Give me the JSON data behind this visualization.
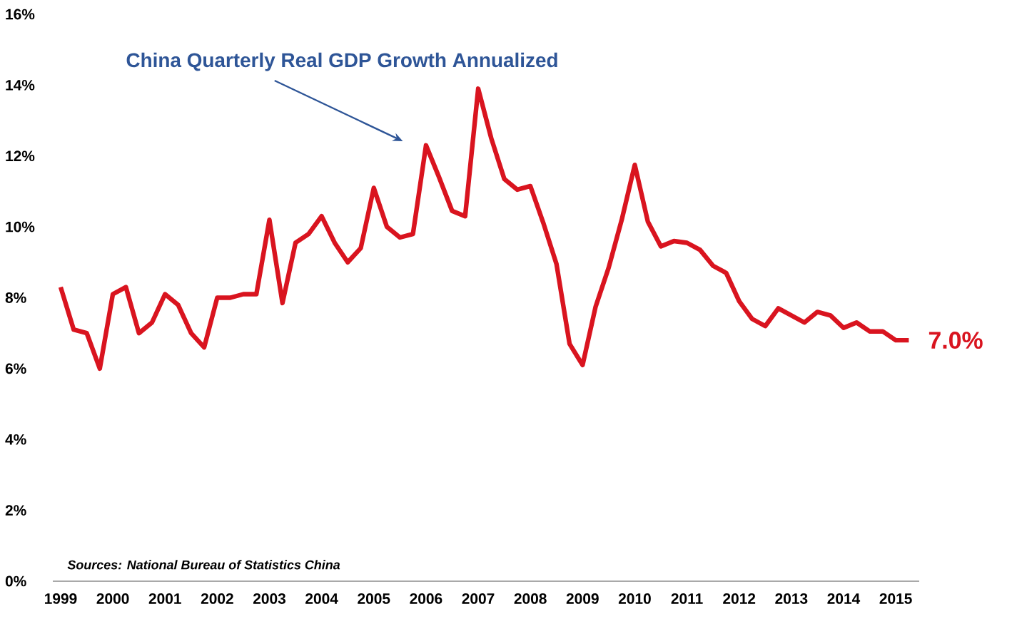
{
  "chart_data": {
    "type": "line",
    "x": [
      1999,
      1999.25,
      1999.5,
      1999.75,
      2000,
      2000.25,
      2000.5,
      2000.75,
      2001,
      2001.25,
      2001.5,
      2001.75,
      2002,
      2002.25,
      2002.5,
      2002.75,
      2003,
      2003.25,
      2003.5,
      2003.75,
      2004,
      2004.25,
      2004.5,
      2004.75,
      2005,
      2005.25,
      2005.5,
      2005.75,
      2006,
      2006.25,
      2006.5,
      2006.75,
      2007,
      2007.25,
      2007.5,
      2007.75,
      2008,
      2008.25,
      2008.5,
      2008.75,
      2009,
      2009.25,
      2009.5,
      2009.75,
      2010,
      2010.25,
      2010.5,
      2010.75,
      2011,
      2011.25,
      2011.5,
      2011.75,
      2012,
      2012.25,
      2012.5,
      2012.75,
      2013,
      2013.25,
      2013.5,
      2013.75,
      2014,
      2014.25,
      2014.5,
      2014.75,
      2015,
      2015.25
    ],
    "series": [
      {
        "name": "China Quarterly Real GDP Growth Annualized",
        "color": "#d9141f",
        "values": [
          8.3,
          7.1,
          7.0,
          6.0,
          8.1,
          8.3,
          7.0,
          7.3,
          8.1,
          7.8,
          7.0,
          6.6,
          8.0,
          8.0,
          8.1,
          8.1,
          10.2,
          7.85,
          9.55,
          9.8,
          10.3,
          9.55,
          9.0,
          9.4,
          11.1,
          10.0,
          9.7,
          9.8,
          12.3,
          11.4,
          10.45,
          10.3,
          13.9,
          12.5,
          11.35,
          11.05,
          11.15,
          10.1,
          8.95,
          6.7,
          6.1,
          7.75,
          8.85,
          10.2,
          11.75,
          10.15,
          9.45,
          9.6,
          9.55,
          9.35,
          8.9,
          8.7,
          7.9,
          7.4,
          7.2,
          7.7,
          7.5,
          7.3,
          7.6,
          7.5,
          7.15,
          7.3,
          7.05,
          7.05,
          6.8,
          6.8
        ]
      }
    ],
    "xlim": [
      1998.85,
      2015.45
    ],
    "xticks": [
      1999,
      2000,
      2001,
      2002,
      2003,
      2004,
      2005,
      2006,
      2007,
      2008,
      2009,
      2010,
      2011,
      2012,
      2013,
      2014,
      2015
    ],
    "ylim": [
      0,
      16
    ],
    "yticks": [
      {
        "value": 0,
        "label": "0%"
      },
      {
        "value": 2,
        "label": "2%"
      },
      {
        "value": 4,
        "label": "4%"
      },
      {
        "value": 6,
        "label": "6%"
      },
      {
        "value": 8,
        "label": "8%"
      },
      {
        "value": 10,
        "label": "10%"
      },
      {
        "value": 12,
        "label": "12%"
      },
      {
        "value": 14,
        "label": "14%"
      },
      {
        "value": 16,
        "label": "16%"
      }
    ],
    "annotations": [
      {
        "text": "7.0%",
        "x": 2015.25,
        "y": 6.8
      },
      "Sources: National Bureau of Statistics China"
    ],
    "grid": false,
    "legend": false,
    "marker": "none",
    "line_style": "solid"
  }
}
